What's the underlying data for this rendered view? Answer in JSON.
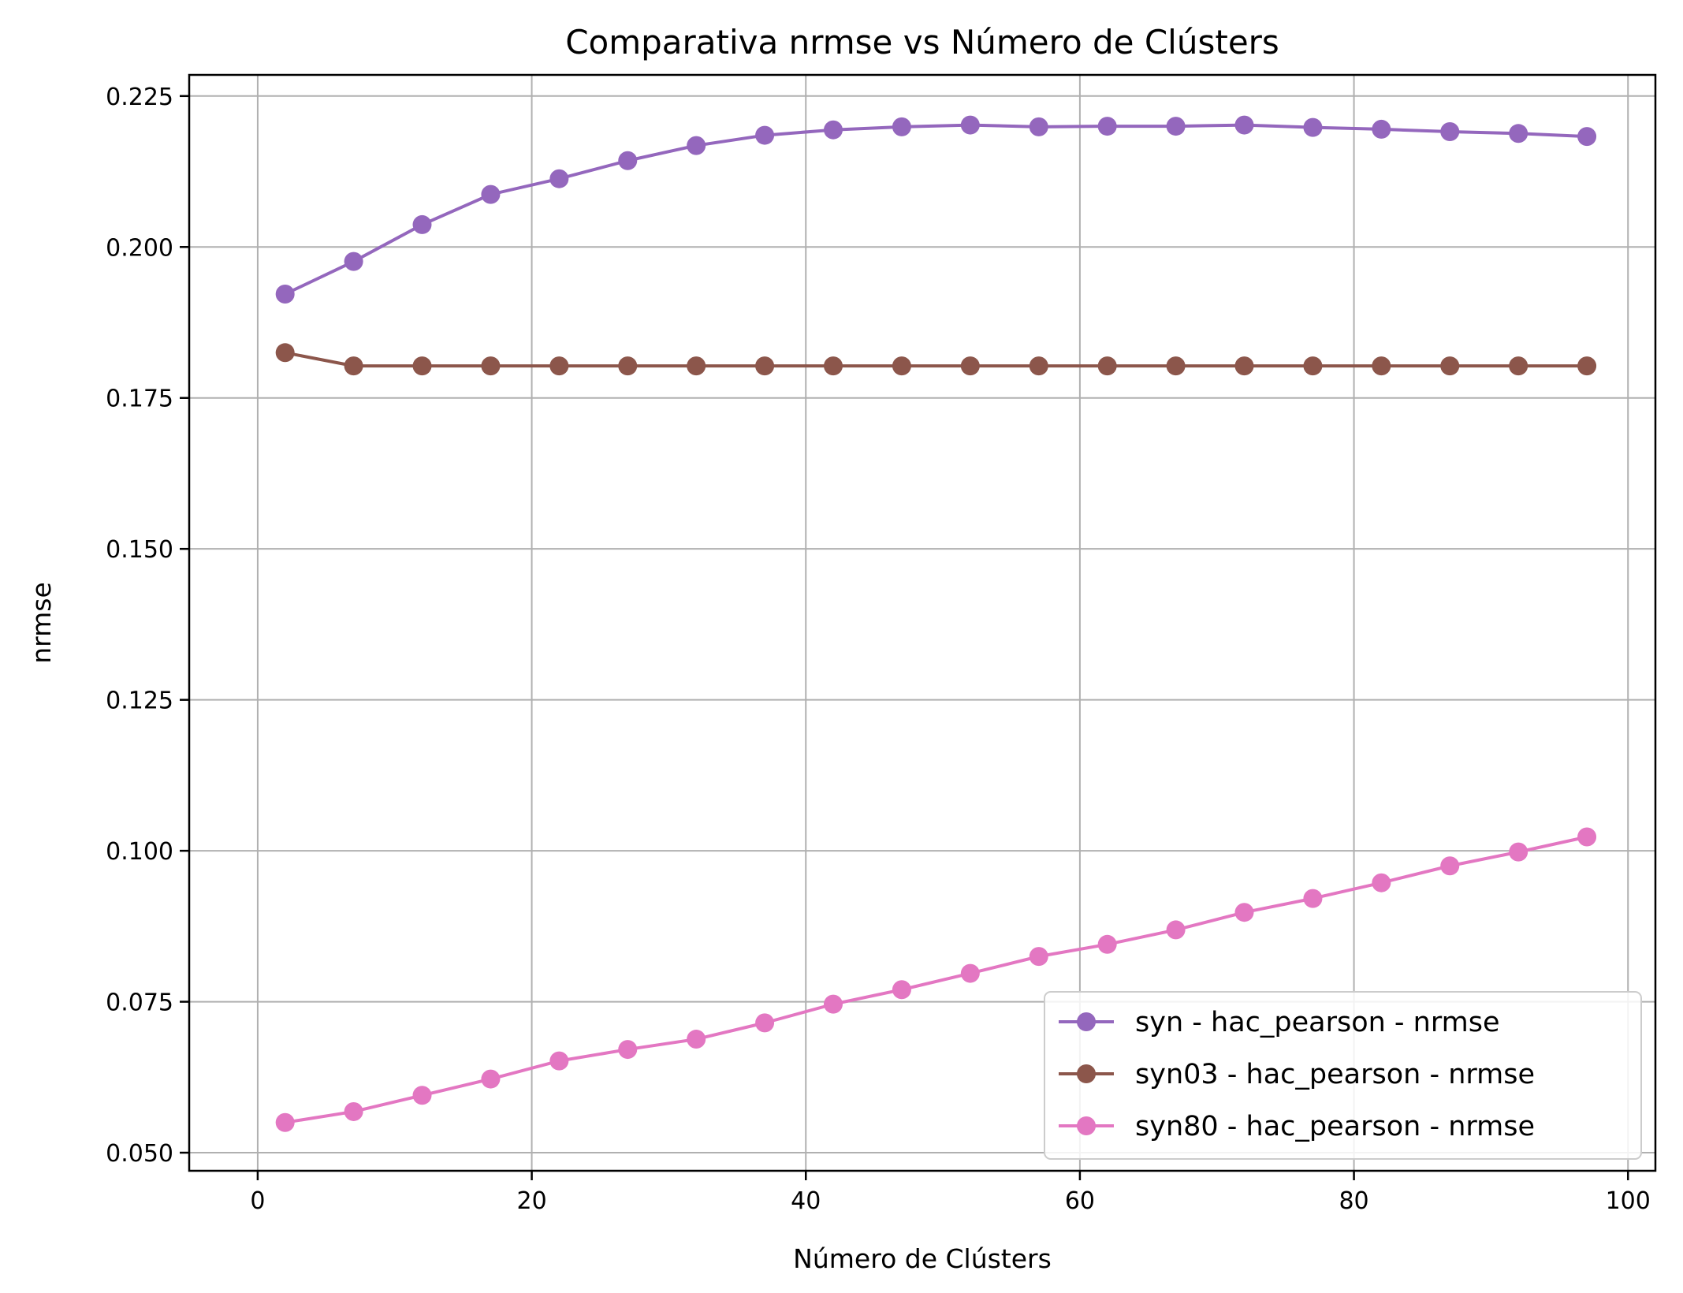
{
  "chart_data": {
    "type": "line",
    "title": "Comparativa nrmse vs Número de Clústers",
    "xlabel": "Número de Clústers",
    "ylabel": "nrmse",
    "xlim": [
      -5,
      102
    ],
    "ylim": [
      0.047,
      0.2285
    ],
    "xticks": [
      0,
      20,
      40,
      60,
      80,
      100
    ],
    "yticks": [
      0.05,
      0.075,
      0.1,
      0.125,
      0.15,
      0.175,
      0.2,
      0.225
    ],
    "grid": true,
    "legend_position": "lower-right",
    "x": [
      2,
      7,
      12,
      17,
      22,
      27,
      32,
      37,
      42,
      47,
      52,
      57,
      62,
      67,
      72,
      77,
      82,
      87,
      92,
      97
    ],
    "series": [
      {
        "name": "syn - hac_pearson - nrmse",
        "color": "#9467bd",
        "values": [
          0.1922,
          0.1976,
          0.2037,
          0.2087,
          0.2113,
          0.2143,
          0.2168,
          0.2185,
          0.2194,
          0.2199,
          0.2202,
          0.2199,
          0.22,
          0.22,
          0.2202,
          0.2198,
          0.2195,
          0.2191,
          0.2188,
          0.2183
        ]
      },
      {
        "name": "syn03 - hac_pearson - nrmse",
        "color": "#8c564b",
        "values": [
          0.1825,
          0.1803,
          0.1803,
          0.1803,
          0.1803,
          0.1803,
          0.1803,
          0.1803,
          0.1803,
          0.1803,
          0.1803,
          0.1803,
          0.1803,
          0.1803,
          0.1803,
          0.1803,
          0.1803,
          0.1803,
          0.1803,
          0.1803
        ]
      },
      {
        "name": "syn80 - hac_pearson - nrmse",
        "color": "#e377c2",
        "values": [
          0.055,
          0.0568,
          0.0595,
          0.0622,
          0.0652,
          0.0671,
          0.0688,
          0.0715,
          0.0746,
          0.077,
          0.0797,
          0.0825,
          0.0845,
          0.0869,
          0.0898,
          0.0921,
          0.0947,
          0.0975,
          0.0998,
          0.1023
        ]
      }
    ]
  }
}
